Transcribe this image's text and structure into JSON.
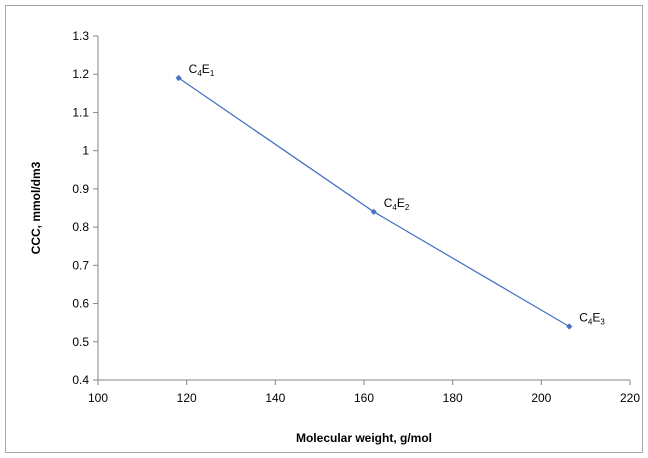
{
  "chart_data": {
    "type": "line",
    "xlabel": "Molecular weight, g/mol",
    "ylabel": "CCC, mmol/dm3",
    "xlim": [
      100,
      220
    ],
    "ylim": [
      0.4,
      1.3
    ],
    "xticks": [
      100,
      120,
      140,
      160,
      180,
      200,
      220
    ],
    "yticks": [
      0.4,
      0.5,
      0.6,
      0.7,
      0.8,
      0.9,
      1,
      1.1,
      1.2,
      1.3
    ],
    "grid": false,
    "legend": "none",
    "series": [
      {
        "color": "#4472c4",
        "points": [
          {
            "x": 118.2,
            "y": 1.19,
            "label": {
              "base": "C",
              "sub1": "4",
              "mid": "E",
              "sub2": "1"
            }
          },
          {
            "x": 162.2,
            "y": 0.84,
            "label": {
              "base": "C",
              "sub1": "4",
              "mid": "E",
              "sub2": "2"
            }
          },
          {
            "x": 206.3,
            "y": 0.54,
            "label": {
              "base": "C",
              "sub1": "4",
              "mid": "E",
              "sub2": "3"
            }
          }
        ]
      }
    ]
  }
}
